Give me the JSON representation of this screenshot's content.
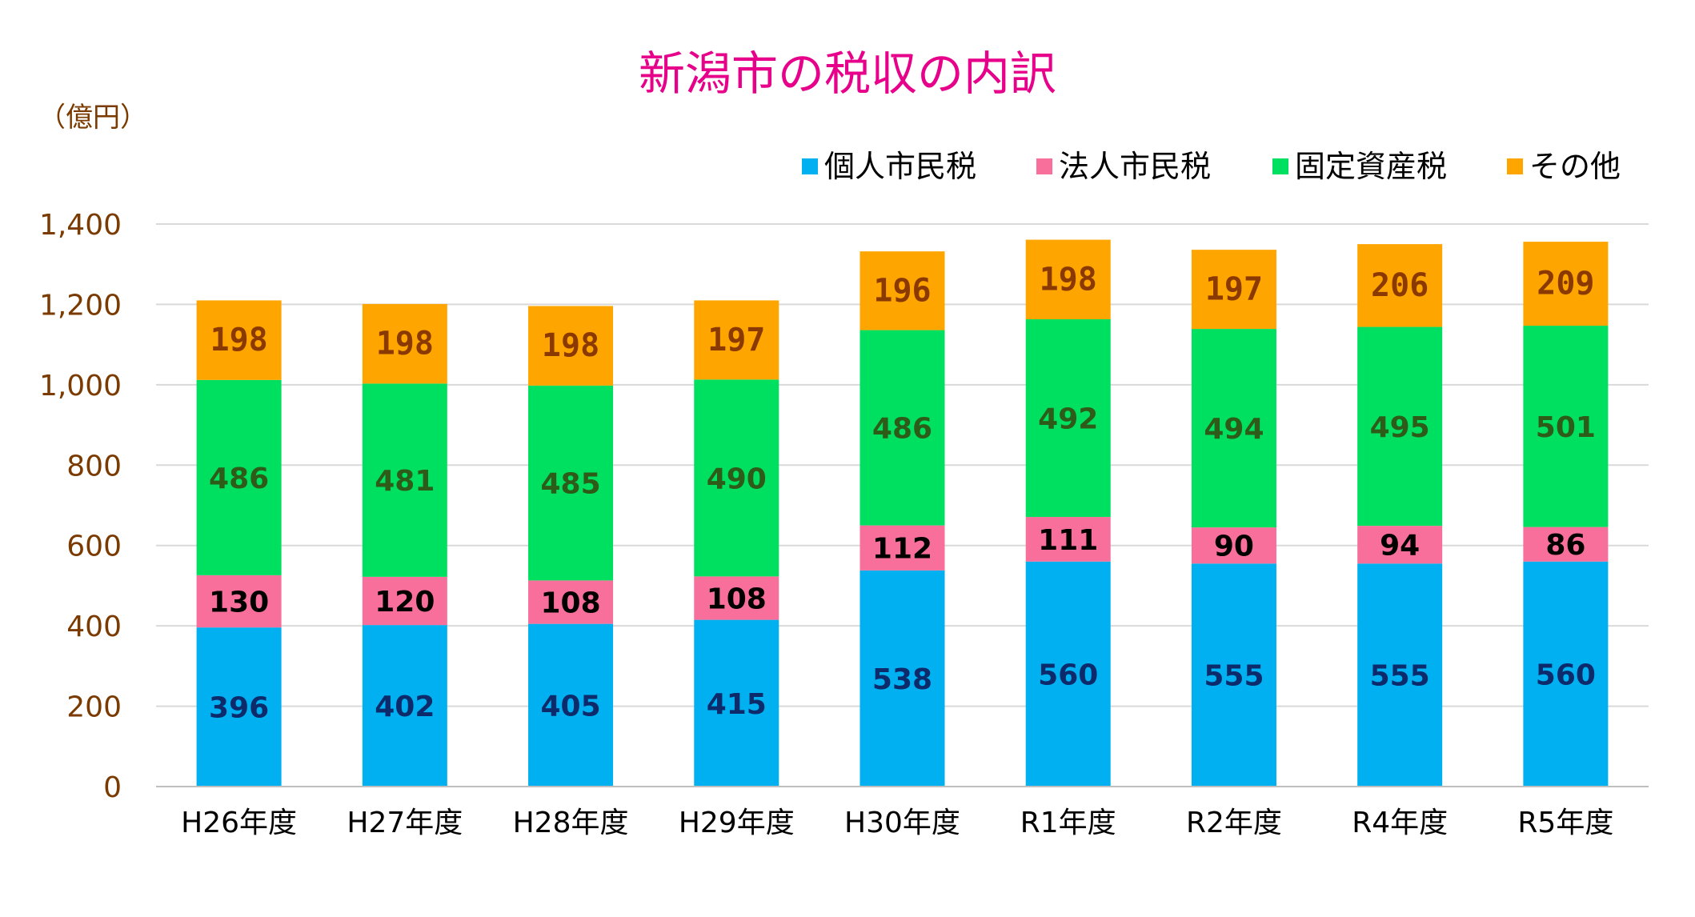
{
  "chart_data": {
    "type": "bar",
    "stacked": true,
    "title": "新潟市の税収の内訳",
    "unit_label": "（億円）",
    "categories": [
      "H26年度",
      "H27年度",
      "H28年度",
      "H29年度",
      "H30年度",
      "R1年度",
      "R2年度",
      "R4年度",
      "R5年度"
    ],
    "series": [
      {
        "name": "個人市民税",
        "color": "#00b0f0",
        "label_color": "#0d2a6b",
        "values": [
          396,
          402,
          405,
          415,
          538,
          560,
          555,
          555,
          560
        ]
      },
      {
        "name": "法人市民税",
        "color": "#f76f9a",
        "label_color": "#000000",
        "values": [
          130,
          120,
          108,
          108,
          112,
          111,
          90,
          94,
          86
        ]
      },
      {
        "name": "固定資産税",
        "color": "#00e060",
        "label_color": "#2e5a1a",
        "values": [
          486,
          481,
          485,
          490,
          486,
          492,
          494,
          495,
          501
        ]
      },
      {
        "name": "その他",
        "color": "#ffa500",
        "label_color": "#8a3a00",
        "values": [
          198,
          198,
          198,
          197,
          196,
          198,
          197,
          206,
          209
        ]
      }
    ],
    "ylim": [
      0,
      1400
    ],
    "yticks": [
      0,
      200,
      400,
      600,
      800,
      1000,
      1200,
      1400
    ],
    "ytick_labels": [
      "0",
      "200",
      "400",
      "600",
      "800",
      "1,000",
      "1,200",
      "1,400"
    ],
    "grid": true,
    "legend_position": "top-right",
    "colors": {
      "title": "#e6008a",
      "axis_text": "#7a3a00",
      "grid": "#d9d9d9"
    }
  }
}
